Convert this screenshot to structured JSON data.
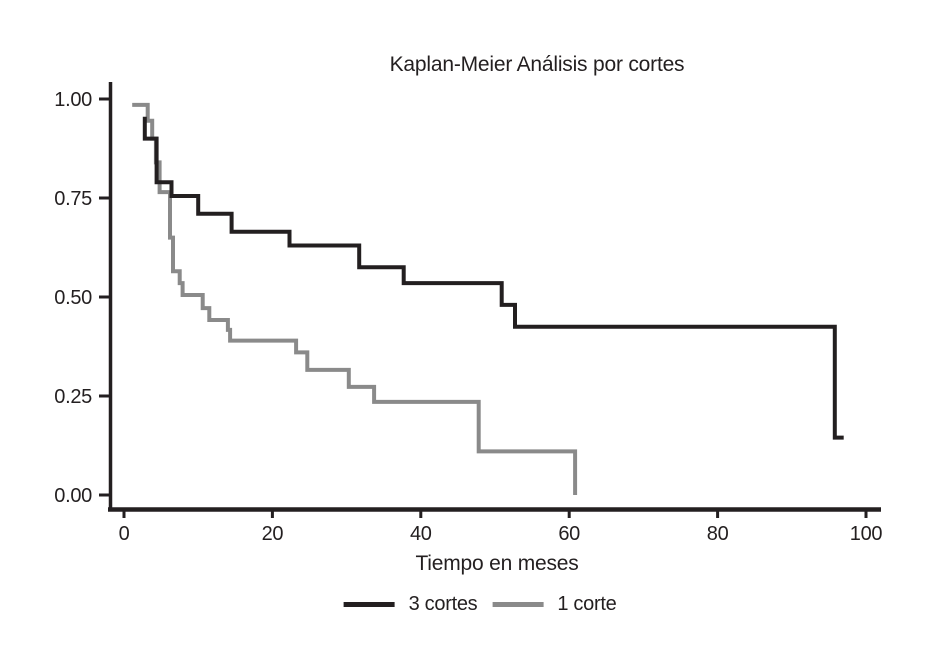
{
  "chart_data": {
    "type": "line",
    "subtype": "kaplan-meier-step",
    "title": "Kaplan-Meier Análisis por cortes",
    "xlabel": "Tiempo en meses",
    "ylabel": "",
    "xlim": [
      0,
      100
    ],
    "ylim": [
      0,
      1
    ],
    "grid": false,
    "legend_position": "bottom-center",
    "x_ticks": [
      0,
      20,
      40,
      60,
      80,
      100
    ],
    "y_ticks": [
      0,
      0.25,
      0.5,
      0.75,
      1
    ],
    "y_tick_labels": [
      "0.00",
      "0.25",
      "0.50",
      "0.75",
      "1.00"
    ],
    "colors": {
      "axis": "#231f20",
      "text": "#231f20",
      "background": "#ffffff"
    },
    "series": [
      {
        "name": "3 cortes",
        "color": "#231f20",
        "points": [
          [
            2.8,
            0.955
          ],
          [
            2.8,
            0.9
          ],
          [
            4.4,
            0.9
          ],
          [
            4.4,
            0.79
          ],
          [
            6.4,
            0.79
          ],
          [
            6.4,
            0.755
          ],
          [
            10,
            0.755
          ],
          [
            10,
            0.71
          ],
          [
            14.5,
            0.71
          ],
          [
            14.5,
            0.665
          ],
          [
            22.3,
            0.665
          ],
          [
            22.3,
            0.63
          ],
          [
            31.7,
            0.63
          ],
          [
            31.7,
            0.575
          ],
          [
            37.7,
            0.575
          ],
          [
            37.7,
            0.535
          ],
          [
            50.9,
            0.535
          ],
          [
            50.9,
            0.48
          ],
          [
            52.7,
            0.48
          ],
          [
            52.7,
            0.425
          ],
          [
            95.8,
            0.425
          ],
          [
            95.8,
            0.145
          ],
          [
            97.0,
            0.145
          ]
        ]
      },
      {
        "name": "1 corte",
        "color": "#8a8a8a",
        "points": [
          [
            1.1,
            0.985
          ],
          [
            3.2,
            0.985
          ],
          [
            3.2,
            0.945
          ],
          [
            3.8,
            0.945
          ],
          [
            3.8,
            0.9
          ],
          [
            4.3,
            0.9
          ],
          [
            4.3,
            0.84
          ],
          [
            4.8,
            0.84
          ],
          [
            4.8,
            0.765
          ],
          [
            6.2,
            0.765
          ],
          [
            6.2,
            0.65
          ],
          [
            6.6,
            0.65
          ],
          [
            6.6,
            0.565
          ],
          [
            7.5,
            0.565
          ],
          [
            7.5,
            0.535
          ],
          [
            7.9,
            0.535
          ],
          [
            7.9,
            0.505
          ],
          [
            10.6,
            0.505
          ],
          [
            10.6,
            0.472
          ],
          [
            11.5,
            0.472
          ],
          [
            11.5,
            0.442
          ],
          [
            14.0,
            0.442
          ],
          [
            14.0,
            0.417
          ],
          [
            14.3,
            0.417
          ],
          [
            14.3,
            0.39
          ],
          [
            23.2,
            0.39
          ],
          [
            23.2,
            0.36
          ],
          [
            24.7,
            0.36
          ],
          [
            24.7,
            0.316
          ],
          [
            30.3,
            0.316
          ],
          [
            30.3,
            0.273
          ],
          [
            33.7,
            0.273
          ],
          [
            33.7,
            0.235
          ],
          [
            47.8,
            0.235
          ],
          [
            47.8,
            0.11
          ],
          [
            60.8,
            0.11
          ],
          [
            60.8,
            0.0
          ]
        ]
      }
    ]
  }
}
